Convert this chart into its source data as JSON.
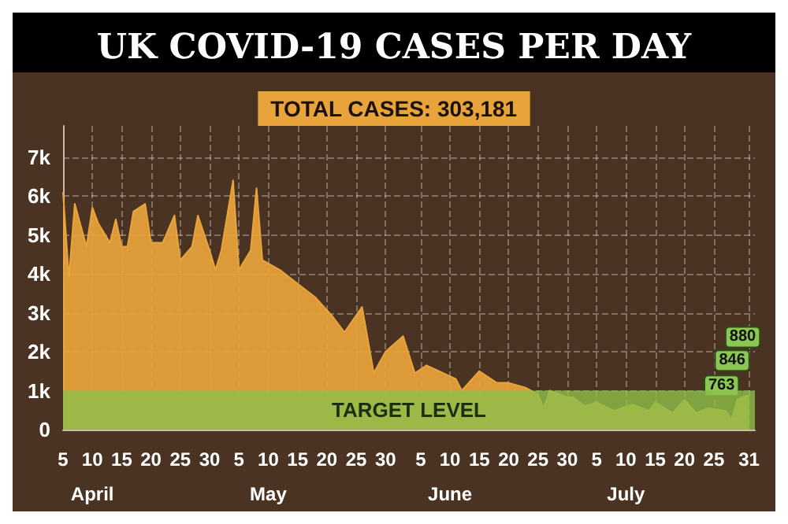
{
  "chart_data": {
    "type": "area",
    "title": "UK COVID-19 CASES PER DAY",
    "annotations": [
      "TOTAL CASES: 303,181"
    ],
    "x": [
      "--04-05",
      "--04-06",
      "--04-07",
      "--04-09",
      "--04-10",
      "--04-11",
      "--04-13",
      "--04-14",
      "--04-15",
      "--04-16",
      "--04-17",
      "--04-19",
      "--04-20",
      "--04-22",
      "--04-24",
      "--04-25",
      "--04-27",
      "--04-28",
      "--04-30",
      "--05-01",
      "--05-02",
      "--05-04",
      "--05-05",
      "--05-07",
      "--05-08",
      "--05-09",
      "--05-12",
      "--05-15",
      "--05-18",
      "--05-21",
      "--05-23",
      "--05-26",
      "--05-28",
      "--05-30",
      "--06-02",
      "--06-04",
      "--06-06",
      "--06-11",
      "--06-12",
      "--06-15",
      "--06-18",
      "--06-20",
      "--06-23",
      "--06-25",
      "--06-26",
      "--06-27",
      "--06-30",
      "--07-01",
      "--07-03",
      "--07-05",
      "--07-08",
      "--07-11",
      "--07-14",
      "--07-15",
      "--07-18",
      "--07-20",
      "--07-22",
      "--07-24",
      "--07-27",
      "--07-28",
      "--07-29",
      "--07-30",
      "--07-31"
    ],
    "series": [
      {
        "color": "#e9a33b",
        "values": [
          6100,
          3900,
          5800,
          4700,
          5700,
          5300,
          4800,
          5400,
          4700,
          4700,
          5600,
          5800,
          4800,
          4800,
          5500,
          4350,
          4700,
          5500,
          4600,
          4100,
          4600,
          6400,
          4100,
          4600,
          6200,
          4350,
          4100,
          3750,
          3400,
          2900,
          2500,
          3150,
          1450,
          2000,
          2400,
          1450,
          1650,
          1300,
          1000,
          1500,
          1200,
          1200,
          1070,
          900,
          550,
          1000,
          830,
          830,
          600,
          700,
          480,
          650,
          480,
          700,
          420,
          770,
          420,
          550,
          480,
          240,
          763,
          846,
          880
        ],
        "value_labels": [
          null,
          null,
          null,
          null,
          null,
          null,
          null,
          null,
          null,
          null,
          null,
          null,
          null,
          null,
          null,
          null,
          null,
          null,
          null,
          null,
          null,
          null,
          null,
          null,
          null,
          null,
          null,
          null,
          null,
          null,
          null,
          null,
          null,
          null,
          null,
          null,
          null,
          null,
          null,
          null,
          null,
          null,
          null,
          null,
          null,
          null,
          null,
          null,
          null,
          null,
          null,
          null,
          null,
          null,
          null,
          null,
          null,
          null,
          null,
          null,
          "763",
          "846",
          "880"
        ]
      }
    ],
    "xlim": [
      "--04-05",
      "--08-01"
    ],
    "xticks": [
      {
        "value": "--04-05",
        "label": "5"
      },
      {
        "value": "--04-10",
        "label": "10\nApril"
      },
      {
        "value": "--04-15",
        "label": "15"
      },
      {
        "value": "--04-20",
        "label": "20"
      },
      {
        "value": "--04-25",
        "label": "25"
      },
      {
        "value": "--04-30",
        "label": "30"
      },
      {
        "value": "--05-05",
        "label": "5"
      },
      {
        "value": "--05-10",
        "label": "10\nMay"
      },
      {
        "value": "--05-15",
        "label": "15"
      },
      {
        "value": "--05-20",
        "label": "20"
      },
      {
        "value": "--05-25",
        "label": "25"
      },
      {
        "value": "--05-30",
        "label": "30"
      },
      {
        "value": "--06-05",
        "label": "5"
      },
      {
        "value": "--06-10",
        "label": "10\nJune"
      },
      {
        "value": "--06-15",
        "label": "15"
      },
      {
        "value": "--06-20",
        "label": "20"
      },
      {
        "value": "--06-25",
        "label": "25"
      },
      {
        "value": "--06-30",
        "label": "30"
      },
      {
        "value": "--07-05",
        "label": "5"
      },
      {
        "value": "--07-10",
        "label": "10\nJuly"
      },
      {
        "value": "--07-15",
        "label": "15"
      },
      {
        "value": "--07-20",
        "label": "20"
      },
      {
        "value": "--07-25",
        "label": "25"
      },
      {
        "value": "--07-31",
        "label": "31"
      }
    ],
    "ylim": [
      0,
      7800
    ],
    "yticks": [
      0,
      {
        "value": 1000,
        "label": "1k"
      },
      {
        "value": 2000,
        "label": "2k"
      },
      {
        "value": 3000,
        "label": "3k"
      },
      {
        "value": 4000,
        "label": "4k"
      },
      {
        "value": 5000,
        "label": "5k"
      },
      {
        "value": 6000,
        "label": "6k"
      },
      {
        "value": 7000,
        "label": "7k"
      }
    ],
    "bands": [
      {
        "axis": "y",
        "from": 0,
        "to": 1000,
        "label": "TARGET LEVEL",
        "color": "#8cbf4a"
      }
    ],
    "grid": true,
    "marker": "none"
  }
}
